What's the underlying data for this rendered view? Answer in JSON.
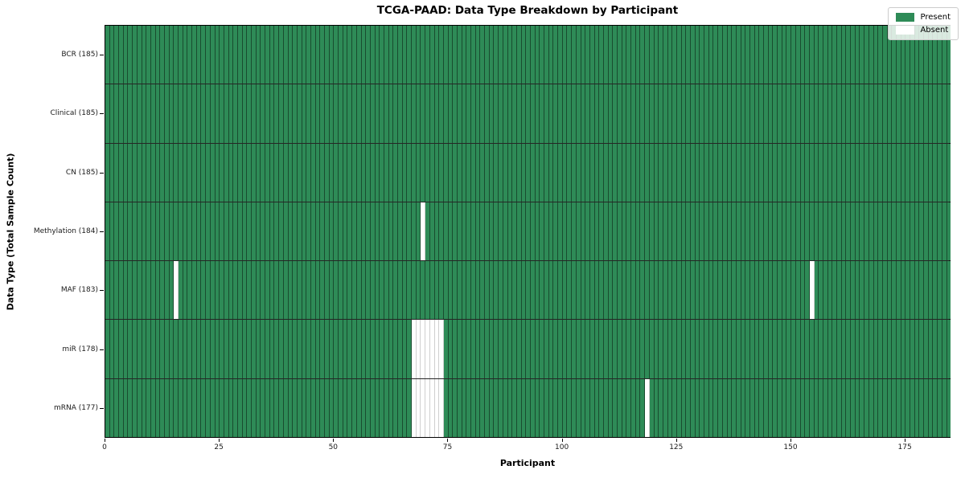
{
  "title": "TCGA-PAAD: Data Type Breakdown by Participant",
  "x_axis": {
    "label": "Participant",
    "ticks": [
      0,
      25,
      50,
      75,
      100,
      125,
      150,
      175
    ],
    "min": 0,
    "max": 185
  },
  "y_axis": {
    "label": "Data Type (Total Sample Count)"
  },
  "legend": {
    "items": [
      {
        "label": "Present",
        "color": "#2e8b57"
      },
      {
        "label": "Absent",
        "color": "#ffffff"
      }
    ]
  },
  "chart_data": {
    "type": "heatmap",
    "title": "TCGA-PAAD: Data Type Breakdown by Participant",
    "xlabel": "Participant",
    "ylabel": "Data Type (Total Sample Count)",
    "x_range": [
      0,
      185
    ],
    "x_ticks": [
      0,
      25,
      50,
      75,
      100,
      125,
      150,
      175
    ],
    "n_participants": 185,
    "legend_position": "upper right",
    "legend_entries": [
      "Present",
      "Absent"
    ],
    "colors": {
      "present": "#2e8b57",
      "absent": "#ffffff"
    },
    "rows": [
      {
        "data_type": "BCR",
        "label": "BCR (185)",
        "present_count": 185,
        "absent_participants": []
      },
      {
        "data_type": "Clinical",
        "label": "Clinical (185)",
        "present_count": 185,
        "absent_participants": []
      },
      {
        "data_type": "CN",
        "label": "CN (185)",
        "present_count": 185,
        "absent_participants": []
      },
      {
        "data_type": "Methylation",
        "label": "Methylation (184)",
        "present_count": 184,
        "absent_participants": [
          69
        ]
      },
      {
        "data_type": "MAF",
        "label": "MAF (183)",
        "present_count": 183,
        "absent_participants": [
          15,
          154
        ]
      },
      {
        "data_type": "miR",
        "label": "miR (178)",
        "present_count": 178,
        "absent_participants": [
          67,
          68,
          69,
          70,
          71,
          72,
          73
        ]
      },
      {
        "data_type": "mRNA",
        "label": "mRNA (177)",
        "present_count": 177,
        "absent_participants": [
          67,
          68,
          69,
          70,
          71,
          72,
          73,
          118
        ]
      }
    ]
  }
}
